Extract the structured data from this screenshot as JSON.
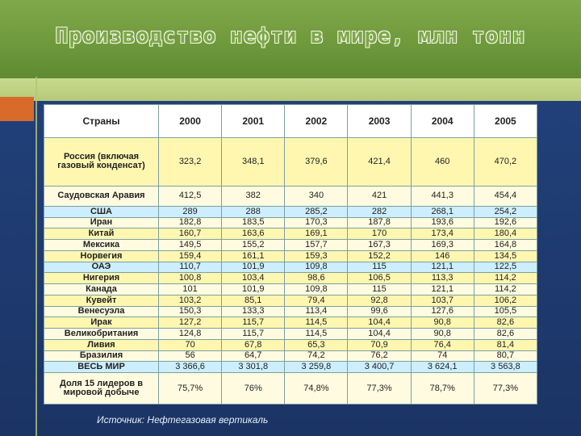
{
  "title": "Производство нефти в мире, млн тонн",
  "table": {
    "headers": [
      "Страны",
      "2000",
      "2001",
      "2002",
      "2003",
      "2004",
      "2005"
    ],
    "rows": [
      {
        "country": "Россия (включая газовый конденсат)",
        "values": [
          "323,2",
          "348,1",
          "379,6",
          "421,4",
          "460",
          "470,2"
        ]
      },
      {
        "country": "Саудовская Аравия",
        "values": [
          "412,5",
          "382",
          "340",
          "421",
          "441,3",
          "454,4"
        ]
      },
      {
        "country": "США",
        "values": [
          "289",
          "288",
          "285,2",
          "282",
          "268,1",
          "254,2"
        ]
      },
      {
        "country": "Иран",
        "values": [
          "182,8",
          "183,5",
          "170,3",
          "187,8",
          "193,6",
          "192,6"
        ]
      },
      {
        "country": "Китай",
        "values": [
          "160,7",
          "163,6",
          "169,1",
          "170",
          "173,4",
          "180,4"
        ]
      },
      {
        "country": "Мексика",
        "values": [
          "149,5",
          "155,2",
          "157,7",
          "167,3",
          "169,3",
          "164,8"
        ]
      },
      {
        "country": "Норвегия",
        "values": [
          "159,4",
          "161,1",
          "159,3",
          "152,2",
          "146",
          "134,5"
        ]
      },
      {
        "country": "ОАЭ",
        "values": [
          "110,7",
          "101,9",
          "109,8",
          "115",
          "121,1",
          "122,5"
        ]
      },
      {
        "country": "Нигерия",
        "values": [
          "100,8",
          "103,4",
          "98,6",
          "106,5",
          "113,3",
          "114,2"
        ]
      },
      {
        "country": "Канада",
        "values": [
          "101",
          "101,9",
          "109,8",
          "115",
          "121,1",
          "114,2"
        ]
      },
      {
        "country": "Кувейт",
        "values": [
          "103,2",
          "85,1",
          "79,4",
          "92,8",
          "103,7",
          "106,2"
        ]
      },
      {
        "country": "Венесуэла",
        "values": [
          "150,3",
          "133,3",
          "113,4",
          "99,6",
          "127,6",
          "105,5"
        ]
      },
      {
        "country": "Ирак",
        "values": [
          "127,2",
          "115,7",
          "114,5",
          "104,4",
          "90,8",
          "82,6"
        ]
      },
      {
        "country": "Великобритания",
        "values": [
          "124,8",
          "115,7",
          "114,5",
          "104,4",
          "90,8",
          "82,6"
        ]
      },
      {
        "country": "Ливия",
        "values": [
          "70",
          "67,8",
          "65,3",
          "70,9",
          "76,4",
          "81,4"
        ]
      },
      {
        "country": "Бразилия",
        "values": [
          "56",
          "64,7",
          "74,2",
          "76,2",
          "74",
          "80,7"
        ]
      },
      {
        "country": "ВЕСЬ МИР",
        "values": [
          "3 366,6",
          "3 301,8",
          "3 259,8",
          "3 400,7",
          "3 624,1",
          "3 563,8"
        ]
      },
      {
        "country": "Доля 15 лидеров в мировой добыче",
        "values": [
          "75,7%",
          "76%",
          "74,8%",
          "77,3%",
          "78,7%",
          "77,3%"
        ]
      }
    ]
  },
  "source": "Источник: Нефтегазовая вертикаль",
  "colors": {
    "header_bg": "#cceeff",
    "row_yellow": "#fff7b0",
    "row_light": "#fffbe0",
    "top_band": "#7fa84a",
    "body_bg": "#1d3566",
    "accent_square": "#d86a2a"
  }
}
